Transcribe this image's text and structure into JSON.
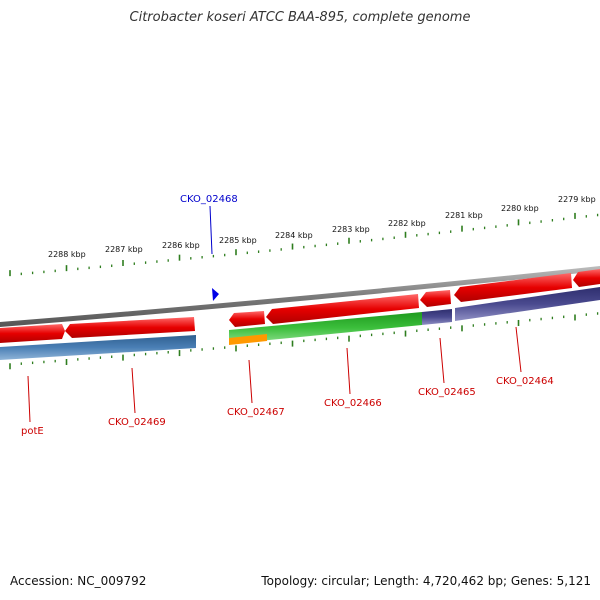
{
  "title": "Citrobacter koseri ATCC BAA-895, complete genome",
  "footer": {
    "accession": "Accession: NC_009792",
    "summary": "Topology: circular; Length: 4,720,462 bp; Genes: 5,121"
  },
  "colors": {
    "backbone": "#8a8a8a",
    "forward_gene": "#e60000",
    "reverse_gene": "#e60000",
    "cds_blue": "#4a7fb5",
    "cds_green": "#3cbf3c",
    "cds_purple": "#4a4a8f",
    "cds_orange": "#ff9900",
    "tick": "#2e7d1e",
    "label_red": "#cc0000",
    "label_blue": "#0000cc"
  },
  "scale": {
    "kbp_labels": [
      "2288 kbp",
      "2287 kbp",
      "2286 kbp",
      "2285 kbp",
      "2284 kbp",
      "2283 kbp",
      "2282 kbp",
      "2281 kbp",
      "2280 kbp",
      "2279 kbp"
    ]
  },
  "genes": [
    {
      "name": "potE",
      "color": "red"
    },
    {
      "name": "CKO_02469",
      "color": "red"
    },
    {
      "name": "CKO_02468",
      "color": "blue"
    },
    {
      "name": "CKO_02467",
      "color": "red"
    },
    {
      "name": "CKO_02466",
      "color": "red"
    },
    {
      "name": "CKO_02465",
      "color": "red"
    },
    {
      "name": "CKO_02464",
      "color": "red"
    }
  ]
}
